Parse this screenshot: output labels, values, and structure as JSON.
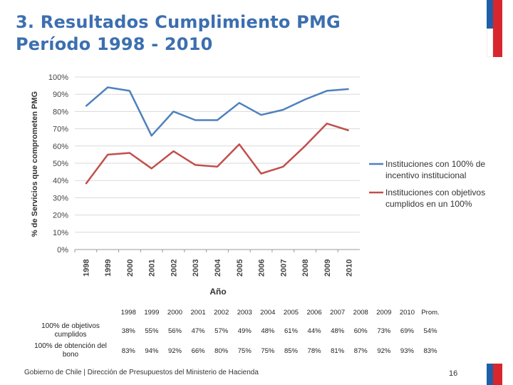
{
  "title_line1": "3. Resultados Cumplimiento PMG",
  "title_line2": "Período 1998 - 2010",
  "chart_data": {
    "type": "line",
    "x": [
      "1998",
      "1999",
      "2000",
      "2001",
      "2002",
      "2003",
      "2004",
      "2005",
      "2006",
      "2007",
      "2008",
      "2009",
      "2010"
    ],
    "series": [
      {
        "name": "Instituciones con 100% de incentivo institucional",
        "color": "#4f81bd",
        "values": [
          83,
          94,
          92,
          66,
          80,
          75,
          75,
          85,
          78,
          81,
          87,
          92,
          93
        ]
      },
      {
        "name": "Instituciones con objetivos cumplidos en un 100%",
        "color": "#c0504d",
        "values": [
          38,
          55,
          56,
          47,
          57,
          49,
          48,
          61,
          44,
          48,
          60,
          73,
          69
        ]
      }
    ],
    "ylim": [
      0,
      100
    ],
    "yticks": [
      "0%",
      "10%",
      "20%",
      "30%",
      "40%",
      "50%",
      "60%",
      "70%",
      "80%",
      "90%",
      "100%"
    ],
    "xlabel": "Año",
    "ylabel": "% de Servicios que comprometen PMG",
    "legend_position": "right",
    "legend_lines": [
      [
        "Instituciones con 100% de",
        "incentivo institucional"
      ],
      [
        "Instituciones con objetivos",
        "cumplidos en un 100%"
      ]
    ]
  },
  "table": {
    "headers": [
      "1998",
      "1999",
      "2000",
      "2001",
      "2002",
      "2003",
      "2004",
      "2005",
      "2006",
      "2007",
      "2008",
      "2009",
      "2010",
      "Prom."
    ],
    "rows": [
      {
        "label_line1": "100% de objetivos",
        "label_line2": "cumplidos",
        "values": [
          "38%",
          "55%",
          "56%",
          "47%",
          "57%",
          "49%",
          "48%",
          "61%",
          "44%",
          "48%",
          "60%",
          "73%",
          "69%",
          "54%"
        ]
      },
      {
        "label_line1": "100% de obtención del",
        "label_line2": "bono",
        "values": [
          "83%",
          "94%",
          "92%",
          "66%",
          "80%",
          "75%",
          "75%",
          "85%",
          "78%",
          "81%",
          "87%",
          "92%",
          "93%",
          "83%"
        ]
      }
    ]
  },
  "footer": "Gobierno de Chile | Dirección de Presupuestos del Ministerio de Hacienda",
  "page_number": "16",
  "colors": {
    "title": "#3c6fb0",
    "flag_blue": "#1f5fa8",
    "flag_red": "#d8262e"
  }
}
